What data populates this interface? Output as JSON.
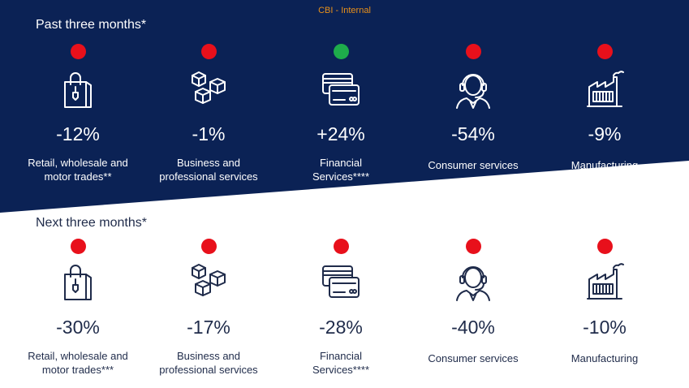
{
  "classification": "CBI - Internal",
  "colors": {
    "band": "#0b2255",
    "text_dark": "#1f2b4a",
    "red": "#e8101b",
    "green": "#1eac4b",
    "orange": "#e8901a"
  },
  "past": {
    "title": "Past three months*",
    "items": [
      {
        "icon": "shopping-bag-icon",
        "status": "red",
        "value": "-12%",
        "label_line1": "Retail, wholesale and",
        "label_line2": "motor trades**"
      },
      {
        "icon": "boxes-icon",
        "status": "red",
        "value": "-1%",
        "label_line1": "Business and",
        "label_line2": "professional services"
      },
      {
        "icon": "credit-cards-icon",
        "status": "green",
        "value": "+24%",
        "label_line1": "Financial",
        "label_line2": "Services****"
      },
      {
        "icon": "headset-agent-icon",
        "status": "red",
        "value": "-54%",
        "label_line1": "Consumer services",
        "label_line2": ""
      },
      {
        "icon": "factory-icon",
        "status": "red",
        "value": "-9%",
        "label_line1": "Manufacturing",
        "label_line2": ""
      }
    ]
  },
  "next": {
    "title": "Next three months*",
    "items": [
      {
        "icon": "shopping-bag-icon",
        "status": "red",
        "value": "-30%",
        "label_line1": "Retail, wholesale and",
        "label_line2": "motor trades***"
      },
      {
        "icon": "boxes-icon",
        "status": "red",
        "value": "-17%",
        "label_line1": "Business and",
        "label_line2": "professional services"
      },
      {
        "icon": "credit-cards-icon",
        "status": "red",
        "value": "-28%",
        "label_line1": "Financial",
        "label_line2": "Services****"
      },
      {
        "icon": "headset-agent-icon",
        "status": "red",
        "value": "-40%",
        "label_line1": "Consumer services",
        "label_line2": ""
      },
      {
        "icon": "factory-icon",
        "status": "red",
        "value": "-10%",
        "label_line1": "Manufacturing",
        "label_line2": ""
      }
    ]
  }
}
